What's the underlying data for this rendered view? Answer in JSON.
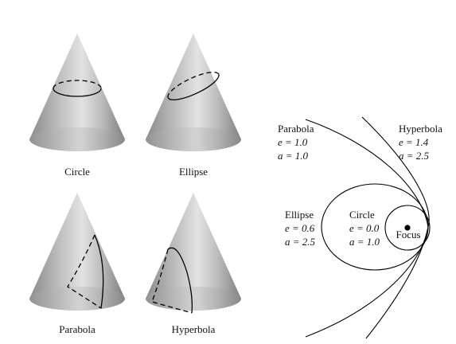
{
  "cones": [
    {
      "id": "circle",
      "label": "Circle"
    },
    {
      "id": "ellipse",
      "label": "Ellipse"
    },
    {
      "id": "parabola",
      "label": "Parabola"
    },
    {
      "id": "hyperbola",
      "label": "Hyperbola"
    }
  ],
  "orbits": {
    "focus_label": "Focus",
    "parabola": {
      "name": "Parabola",
      "e_label": "e = 1.0",
      "a_label": "a = 1.0"
    },
    "hyperbola": {
      "name": "Hyperbola",
      "e_label": "e = 1.4",
      "a_label": "a = 2.5"
    },
    "ellipse": {
      "name": "Ellipse",
      "e_label": "e = 0.6",
      "a_label": "a = 2.5"
    },
    "circle": {
      "name": "Circle",
      "e_label": "e = 0.0",
      "a_label": "a = 1.0"
    }
  }
}
